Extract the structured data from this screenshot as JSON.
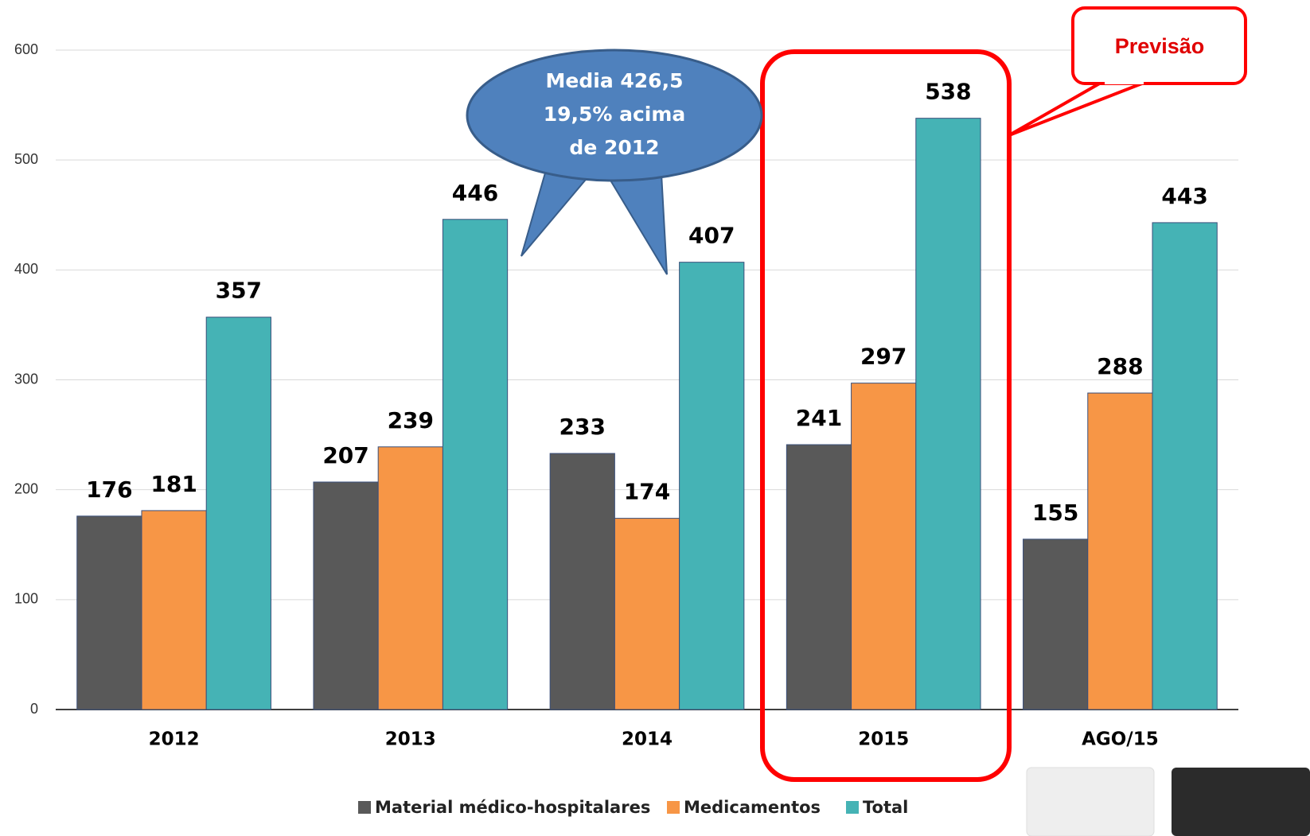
{
  "chart_data": {
    "type": "bar",
    "categories": [
      "2012",
      "2013",
      "2014",
      "2015",
      "AGO/15"
    ],
    "series": [
      {
        "name": "Material médico-hospitalares",
        "color": "#595959",
        "values": [
          176,
          207,
          233,
          241,
          155
        ]
      },
      {
        "name": "Medicamentos",
        "color": "#f79646",
        "values": [
          181,
          239,
          174,
          297,
          288
        ]
      },
      {
        "name": "Total",
        "color": "#45b3b5",
        "values": [
          357,
          446,
          407,
          538,
          443
        ]
      }
    ],
    "ylim": [
      0,
      600
    ],
    "yticks": [
      0,
      100,
      200,
      300,
      400,
      500,
      600
    ],
    "grid": true,
    "legend": "bottom",
    "callout": [
      "Media 426,5",
      "19,5% acima",
      "de 2012"
    ],
    "highlight_label": "Previsão"
  }
}
